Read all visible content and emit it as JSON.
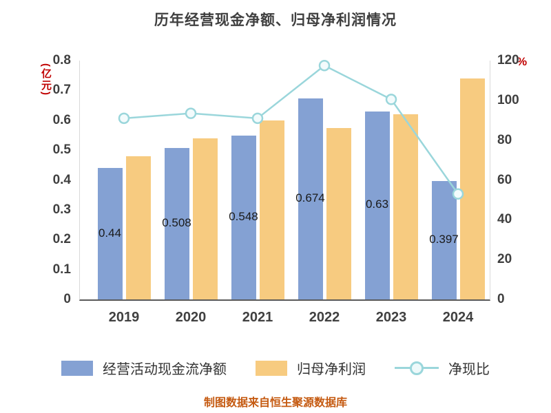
{
  "chart_data": {
    "type": "bar",
    "title": "历年经营现金净额、归母净利润情况",
    "left_axis_unit": "(亿元)",
    "right_axis_unit": "%",
    "categories": [
      "2019",
      "2020",
      "2021",
      "2022",
      "2023",
      "2024"
    ],
    "series": [
      {
        "name": "经营活动现金流净额",
        "type": "bar",
        "axis": "left",
        "color": "#84a1d3",
        "values": [
          0.44,
          0.508,
          0.548,
          0.674,
          0.63,
          0.397
        ],
        "labels": [
          "0.44",
          "0.508",
          "0.548",
          "0.674",
          "0.63",
          "0.397"
        ]
      },
      {
        "name": "归母净利润",
        "type": "bar",
        "axis": "left",
        "color": "#f7cb80",
        "values": [
          0.48,
          0.54,
          0.6,
          0.575,
          0.62,
          0.74
        ]
      },
      {
        "name": "净现比",
        "type": "line",
        "axis": "right",
        "color": "#9ad6db",
        "values": [
          91,
          93.5,
          91,
          117.5,
          100.5,
          53
        ]
      }
    ],
    "left_axis": {
      "min": 0,
      "max": 0.8,
      "step": 0.1,
      "ticks": [
        "0",
        "0.1",
        "0.2",
        "0.3",
        "0.4",
        "0.5",
        "0.6",
        "0.7",
        "0.8"
      ]
    },
    "right_axis": {
      "min": 0,
      "max": 120,
      "step": 20,
      "ticks": [
        "0",
        "20",
        "40",
        "60",
        "80",
        "100",
        "120"
      ]
    },
    "grid": false,
    "legend_position": "bottom",
    "source_note": "制图数据来自恒生聚源数据库"
  }
}
